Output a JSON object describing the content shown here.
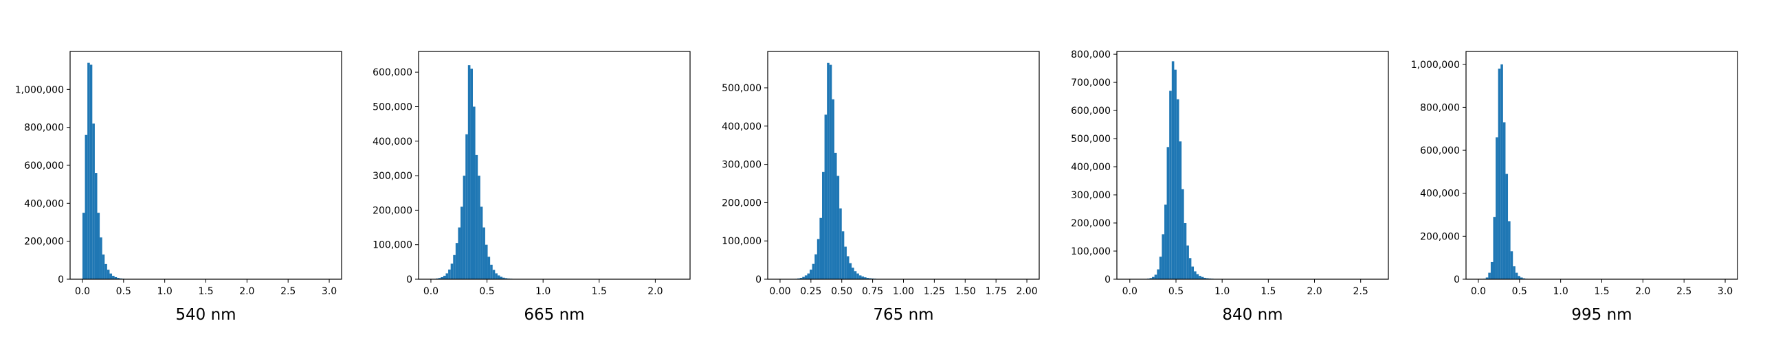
{
  "chart_data": [
    {
      "type": "histogram",
      "xlabel": "540 nm",
      "ylabel": "",
      "xlim": [
        -0.15,
        3.15
      ],
      "ylim": [
        0,
        1200000
      ],
      "xticks": [
        0.0,
        0.5,
        1.0,
        1.5,
        2.0,
        2.5,
        3.0
      ],
      "xtick_labels": [
        "0.0",
        "0.5",
        "1.0",
        "1.5",
        "2.0",
        "2.5",
        "3.0"
      ],
      "yticks": [
        0,
        200000,
        400000,
        600000,
        800000,
        1000000
      ],
      "ytick_labels": [
        "0",
        "200,000",
        "400,000",
        "600,000",
        "800,000",
        "1,000,000"
      ],
      "bin_width": 0.03,
      "bins": [
        {
          "x": 0.0,
          "count": 350000
        },
        {
          "x": 0.03,
          "count": 760000
        },
        {
          "x": 0.06,
          "count": 1140000
        },
        {
          "x": 0.09,
          "count": 1130000
        },
        {
          "x": 0.12,
          "count": 820000
        },
        {
          "x": 0.15,
          "count": 560000
        },
        {
          "x": 0.18,
          "count": 350000
        },
        {
          "x": 0.21,
          "count": 220000
        },
        {
          "x": 0.24,
          "count": 130000
        },
        {
          "x": 0.27,
          "count": 80000
        },
        {
          "x": 0.3,
          "count": 50000
        },
        {
          "x": 0.33,
          "count": 30000
        },
        {
          "x": 0.36,
          "count": 18000
        },
        {
          "x": 0.39,
          "count": 11000
        },
        {
          "x": 0.42,
          "count": 7000
        },
        {
          "x": 0.45,
          "count": 4000
        },
        {
          "x": 0.48,
          "count": 2500
        },
        {
          "x": 0.51,
          "count": 1500
        },
        {
          "x": 0.54,
          "count": 1000
        }
      ]
    },
    {
      "type": "histogram",
      "xlabel": "665 nm",
      "ylabel": "",
      "xlim": [
        -0.11,
        2.31
      ],
      "ylim": [
        0,
        660000
      ],
      "xticks": [
        0.0,
        0.5,
        1.0,
        1.5,
        2.0
      ],
      "xtick_labels": [
        "0.0",
        "0.5",
        "1.0",
        "1.5",
        "2.0"
      ],
      "yticks": [
        0,
        100000,
        200000,
        300000,
        400000,
        500000,
        600000
      ],
      "ytick_labels": [
        "0",
        "100,000",
        "200,000",
        "300,000",
        "400,000",
        "500,000",
        "600,000"
      ],
      "bin_width": 0.022,
      "bins": [
        {
          "x": 0.0,
          "count": 500
        },
        {
          "x": 0.022,
          "count": 1000
        },
        {
          "x": 0.044,
          "count": 2000
        },
        {
          "x": 0.066,
          "count": 3500
        },
        {
          "x": 0.088,
          "count": 6000
        },
        {
          "x": 0.11,
          "count": 10000
        },
        {
          "x": 0.132,
          "count": 17000
        },
        {
          "x": 0.154,
          "count": 28000
        },
        {
          "x": 0.176,
          "count": 45000
        },
        {
          "x": 0.198,
          "count": 70000
        },
        {
          "x": 0.22,
          "count": 105000
        },
        {
          "x": 0.242,
          "count": 150000
        },
        {
          "x": 0.264,
          "count": 210000
        },
        {
          "x": 0.286,
          "count": 300000
        },
        {
          "x": 0.308,
          "count": 420000
        },
        {
          "x": 0.33,
          "count": 620000
        },
        {
          "x": 0.352,
          "count": 610000
        },
        {
          "x": 0.374,
          "count": 500000
        },
        {
          "x": 0.396,
          "count": 360000
        },
        {
          "x": 0.418,
          "count": 300000
        },
        {
          "x": 0.44,
          "count": 210000
        },
        {
          "x": 0.462,
          "count": 150000
        },
        {
          "x": 0.484,
          "count": 100000
        },
        {
          "x": 0.506,
          "count": 65000
        },
        {
          "x": 0.528,
          "count": 42000
        },
        {
          "x": 0.55,
          "count": 27000
        },
        {
          "x": 0.572,
          "count": 17000
        },
        {
          "x": 0.594,
          "count": 11000
        },
        {
          "x": 0.616,
          "count": 7000
        },
        {
          "x": 0.638,
          "count": 4500
        },
        {
          "x": 0.66,
          "count": 3000
        },
        {
          "x": 0.682,
          "count": 2000
        },
        {
          "x": 0.704,
          "count": 1400
        },
        {
          "x": 0.726,
          "count": 1000
        },
        {
          "x": 0.748,
          "count": 700
        },
        {
          "x": 0.77,
          "count": 500
        },
        {
          "x": 0.792,
          "count": 350
        },
        {
          "x": 0.814,
          "count": 250
        },
        {
          "x": 0.836,
          "count": 200
        },
        {
          "x": 0.858,
          "count": 150
        }
      ]
    },
    {
      "type": "histogram",
      "xlabel": "765 nm",
      "ylabel": "",
      "xlim": [
        -0.1,
        2.1
      ],
      "ylim": [
        0,
        595000
      ],
      "xticks": [
        0.0,
        0.25,
        0.5,
        0.75,
        1.0,
        1.25,
        1.5,
        1.75,
        2.0
      ],
      "xtick_labels": [
        "0.00",
        "0.25",
        "0.50",
        "0.75",
        "1.00",
        "1.25",
        "1.50",
        "1.75",
        "2.00"
      ],
      "yticks": [
        0,
        100000,
        200000,
        300000,
        400000,
        500000
      ],
      "ytick_labels": [
        "0",
        "100,000",
        "200,000",
        "300,000",
        "400,000",
        "500,000"
      ],
      "bin_width": 0.02,
      "bins": [
        {
          "x": 0.1,
          "count": 500
        },
        {
          "x": 0.12,
          "count": 1000
        },
        {
          "x": 0.14,
          "count": 2000
        },
        {
          "x": 0.16,
          "count": 3500
        },
        {
          "x": 0.18,
          "count": 6000
        },
        {
          "x": 0.2,
          "count": 10000
        },
        {
          "x": 0.22,
          "count": 15000
        },
        {
          "x": 0.24,
          "count": 25000
        },
        {
          "x": 0.26,
          "count": 40000
        },
        {
          "x": 0.28,
          "count": 65000
        },
        {
          "x": 0.3,
          "count": 105000
        },
        {
          "x": 0.32,
          "count": 160000
        },
        {
          "x": 0.34,
          "count": 280000
        },
        {
          "x": 0.36,
          "count": 430000
        },
        {
          "x": 0.38,
          "count": 565000
        },
        {
          "x": 0.4,
          "count": 560000
        },
        {
          "x": 0.42,
          "count": 470000
        },
        {
          "x": 0.44,
          "count": 330000
        },
        {
          "x": 0.46,
          "count": 270000
        },
        {
          "x": 0.48,
          "count": 185000
        },
        {
          "x": 0.5,
          "count": 125000
        },
        {
          "x": 0.52,
          "count": 85000
        },
        {
          "x": 0.54,
          "count": 60000
        },
        {
          "x": 0.56,
          "count": 42000
        },
        {
          "x": 0.58,
          "count": 30000
        },
        {
          "x": 0.6,
          "count": 21000
        },
        {
          "x": 0.62,
          "count": 15000
        },
        {
          "x": 0.64,
          "count": 10000
        },
        {
          "x": 0.66,
          "count": 7000
        },
        {
          "x": 0.68,
          "count": 5000
        },
        {
          "x": 0.7,
          "count": 3500
        },
        {
          "x": 0.72,
          "count": 2500
        },
        {
          "x": 0.74,
          "count": 1800
        },
        {
          "x": 0.76,
          "count": 1300
        },
        {
          "x": 0.78,
          "count": 900
        },
        {
          "x": 0.8,
          "count": 600
        },
        {
          "x": 0.82,
          "count": 400
        },
        {
          "x": 0.84,
          "count": 300
        },
        {
          "x": 0.86,
          "count": 200
        },
        {
          "x": 0.88,
          "count": 150
        },
        {
          "x": 0.9,
          "count": 100
        }
      ]
    },
    {
      "type": "histogram",
      "xlabel": "840 nm",
      "ylabel": "",
      "xlim": [
        -0.14,
        2.8
      ],
      "ylim": [
        0,
        810000
      ],
      "xticks": [
        0.0,
        0.5,
        1.0,
        1.5,
        2.0,
        2.5
      ],
      "xtick_labels": [
        "0.0",
        "0.5",
        "1.0",
        "1.5",
        "2.0",
        "2.5"
      ],
      "yticks": [
        0,
        100000,
        200000,
        300000,
        400000,
        500000,
        600000,
        700000,
        800000
      ],
      "ytick_labels": [
        "0",
        "100,000",
        "200,000",
        "300,000",
        "400,000",
        "500,000",
        "600,000",
        "700,000",
        "800,000"
      ],
      "bin_width": 0.0267,
      "bins": [
        {
          "x": 0.16,
          "count": 1000
        },
        {
          "x": 0.187,
          "count": 2000
        },
        {
          "x": 0.214,
          "count": 4000
        },
        {
          "x": 0.24,
          "count": 8000
        },
        {
          "x": 0.267,
          "count": 16000
        },
        {
          "x": 0.294,
          "count": 35000
        },
        {
          "x": 0.32,
          "count": 80000
        },
        {
          "x": 0.347,
          "count": 160000
        },
        {
          "x": 0.374,
          "count": 265000
        },
        {
          "x": 0.4,
          "count": 470000
        },
        {
          "x": 0.427,
          "count": 670000
        },
        {
          "x": 0.454,
          "count": 775000
        },
        {
          "x": 0.48,
          "count": 745000
        },
        {
          "x": 0.507,
          "count": 640000
        },
        {
          "x": 0.534,
          "count": 490000
        },
        {
          "x": 0.56,
          "count": 320000
        },
        {
          "x": 0.587,
          "count": 200000
        },
        {
          "x": 0.614,
          "count": 120000
        },
        {
          "x": 0.64,
          "count": 75000
        },
        {
          "x": 0.667,
          "count": 45000
        },
        {
          "x": 0.694,
          "count": 28000
        },
        {
          "x": 0.72,
          "count": 18000
        },
        {
          "x": 0.747,
          "count": 12000
        },
        {
          "x": 0.774,
          "count": 8000
        },
        {
          "x": 0.8,
          "count": 5000
        },
        {
          "x": 0.827,
          "count": 3500
        },
        {
          "x": 0.854,
          "count": 2500
        },
        {
          "x": 0.88,
          "count": 1800
        },
        {
          "x": 0.907,
          "count": 1200
        },
        {
          "x": 0.934,
          "count": 800
        },
        {
          "x": 0.96,
          "count": 500
        },
        {
          "x": 0.987,
          "count": 300
        }
      ]
    },
    {
      "type": "histogram",
      "xlabel": "995 nm",
      "ylabel": "",
      "xlim": [
        -0.15,
        3.15
      ],
      "ylim": [
        0,
        1060000
      ],
      "xticks": [
        0.0,
        0.5,
        1.0,
        1.5,
        2.0,
        2.5,
        3.0
      ],
      "xtick_labels": [
        "0.0",
        "0.5",
        "1.0",
        "1.5",
        "2.0",
        "2.5",
        "3.0"
      ],
      "yticks": [
        0,
        200000,
        400000,
        600000,
        800000,
        1000000
      ],
      "ytick_labels": [
        "0",
        "200,000",
        "400,000",
        "600,000",
        "800,000",
        "1,000,000"
      ],
      "bin_width": 0.03,
      "bins": [
        {
          "x": 0.06,
          "count": 2000
        },
        {
          "x": 0.09,
          "count": 8000
        },
        {
          "x": 0.12,
          "count": 30000
        },
        {
          "x": 0.15,
          "count": 80000
        },
        {
          "x": 0.18,
          "count": 290000
        },
        {
          "x": 0.21,
          "count": 660000
        },
        {
          "x": 0.24,
          "count": 980000
        },
        {
          "x": 0.27,
          "count": 1000000
        },
        {
          "x": 0.3,
          "count": 730000
        },
        {
          "x": 0.33,
          "count": 490000
        },
        {
          "x": 0.36,
          "count": 270000
        },
        {
          "x": 0.39,
          "count": 130000
        },
        {
          "x": 0.42,
          "count": 60000
        },
        {
          "x": 0.45,
          "count": 30000
        },
        {
          "x": 0.48,
          "count": 15000
        },
        {
          "x": 0.51,
          "count": 8000
        },
        {
          "x": 0.54,
          "count": 4000
        },
        {
          "x": 0.57,
          "count": 2000
        },
        {
          "x": 0.6,
          "count": 1000
        }
      ]
    }
  ],
  "colors": {
    "bar_fill": "#1f77b4",
    "axes": "#000000",
    "background": "#ffffff"
  }
}
